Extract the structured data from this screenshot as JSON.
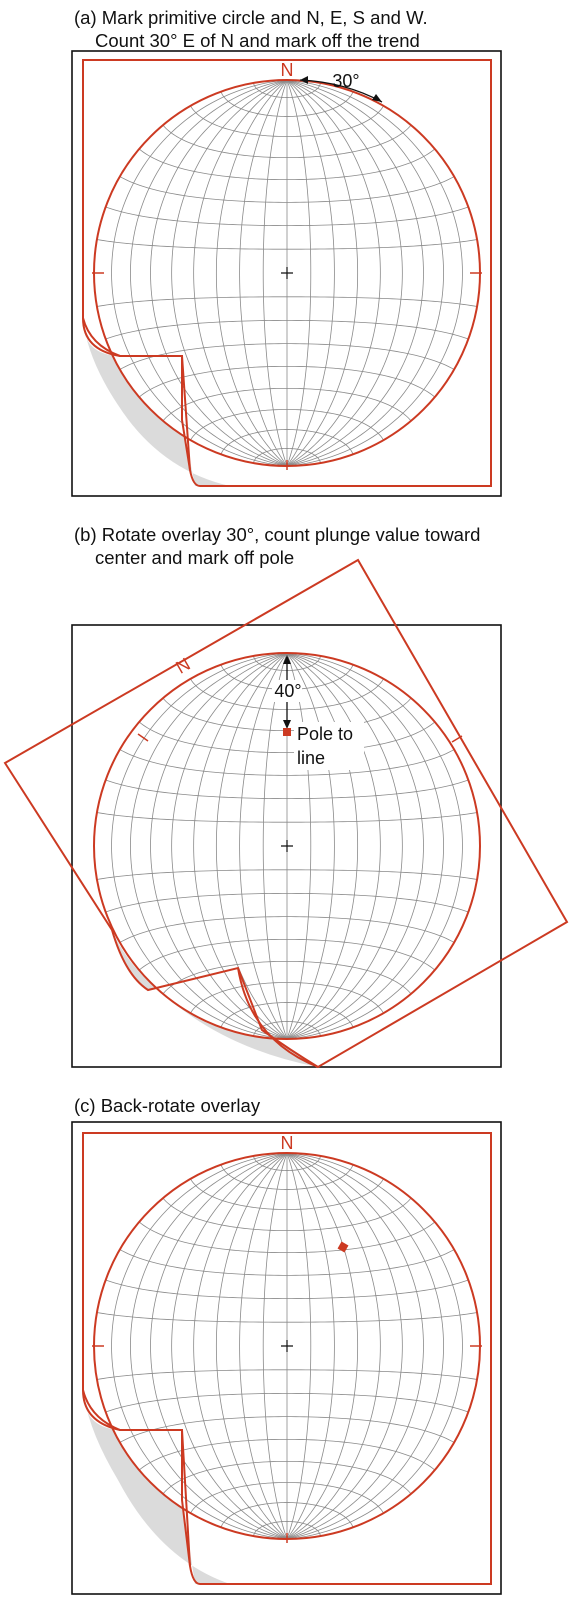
{
  "panels": [
    {
      "id": "a",
      "caption_line1": "(a) Mark primitive circle and N, E, S and W.",
      "caption_line2": "Count 30° E of N and mark off the trend",
      "north_label": "N",
      "angle_label": "30°"
    },
    {
      "id": "b",
      "caption_line1": "(b) Rotate overlay 30°, count plunge value toward",
      "caption_line2": "center and mark off pole",
      "north_label": "N",
      "angle_label": "40°",
      "pole_label_line1": "Pole to",
      "pole_label_line2": "line"
    },
    {
      "id": "c",
      "caption_line1": "(c) Back-rotate overlay",
      "north_label": "N"
    }
  ],
  "colors": {
    "overlay": "#cc3a22",
    "net_lines": "#8a8a8a",
    "frame": "#111111",
    "curl_shadow": "#9a9a9a"
  },
  "measurements": {
    "trend_deg": 30,
    "plunge_deg": 40
  }
}
